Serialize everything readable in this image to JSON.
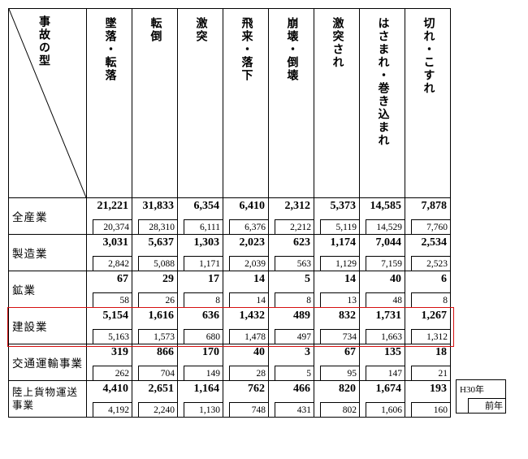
{
  "diag_label": "事故の型",
  "columns": [
    "墜落・転落",
    "転倒",
    "激突",
    "飛来・落下",
    "崩壊・倒壊",
    "激突され",
    "はさまれ・巻き込まれ",
    "切れ・こすれ"
  ],
  "rows": [
    {
      "label": "全産業",
      "top": [
        "21,221",
        "31,833",
        "6,354",
        "6,410",
        "2,312",
        "5,373",
        "14,585",
        "7,878"
      ],
      "bot": [
        "20,374",
        "28,310",
        "6,111",
        "6,376",
        "2,212",
        "5,119",
        "14,529",
        "7,760"
      ]
    },
    {
      "label": "製造業",
      "top": [
        "3,031",
        "5,637",
        "1,303",
        "2,023",
        "623",
        "1,174",
        "7,044",
        "2,534"
      ],
      "bot": [
        "2,842",
        "5,088",
        "1,171",
        "2,039",
        "563",
        "1,129",
        "7,159",
        "2,523"
      ]
    },
    {
      "label": "鉱業",
      "top": [
        "67",
        "29",
        "17",
        "14",
        "5",
        "14",
        "40",
        "6"
      ],
      "bot": [
        "58",
        "26",
        "8",
        "14",
        "8",
        "13",
        "48",
        "8"
      ]
    },
    {
      "label": "建設業",
      "top": [
        "5,154",
        "1,616",
        "636",
        "1,432",
        "489",
        "832",
        "1,731",
        "1,267"
      ],
      "bot": [
        "5,163",
        "1,573",
        "680",
        "1,478",
        "497",
        "734",
        "1,663",
        "1,312"
      ]
    },
    {
      "label": "交通運輸事業",
      "top": [
        "319",
        "866",
        "170",
        "40",
        "3",
        "67",
        "135",
        "18"
      ],
      "bot": [
        "262",
        "704",
        "149",
        "28",
        "5",
        "95",
        "147",
        "21"
      ]
    },
    {
      "label": "陸上貨物運送事業",
      "top": [
        "4,410",
        "2,651",
        "1,164",
        "762",
        "466",
        "820",
        "1,674",
        "193"
      ],
      "bot": [
        "4,192",
        "2,240",
        "1,130",
        "748",
        "431",
        "802",
        "1,606",
        "160"
      ]
    }
  ],
  "highlight_row_index": 3,
  "legend": {
    "top": "H30年",
    "bot": "前年"
  },
  "colors": {
    "highlight": "#d51010",
    "border": "#000000",
    "bg": "#ffffff"
  }
}
